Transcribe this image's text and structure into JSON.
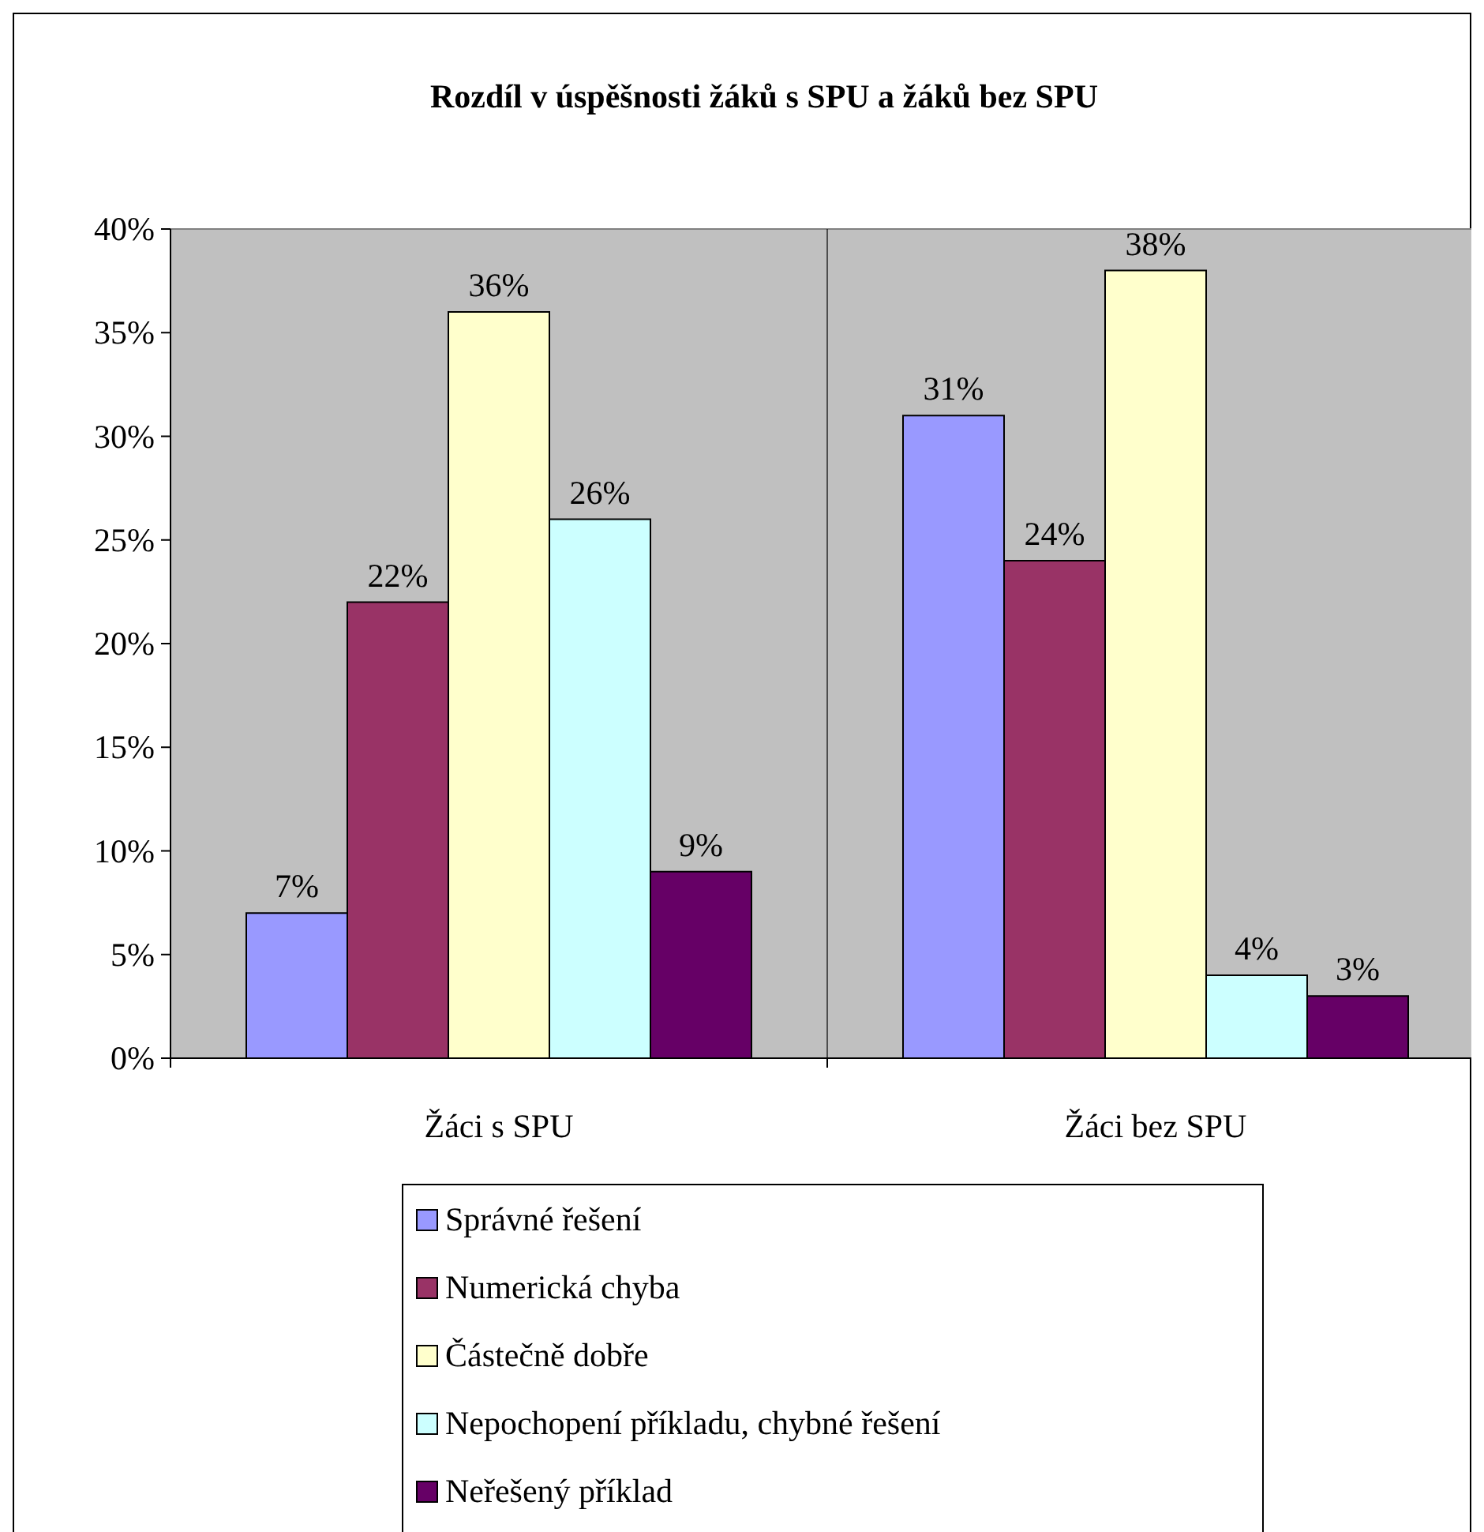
{
  "chart_data": {
    "type": "bar",
    "title": "Rozdíl v úspěšnosti žáků s SPU a žáků bez SPU",
    "categories": [
      "Žáci s SPU",
      "Žáci bez SPU"
    ],
    "series": [
      {
        "name": "Správné řešení",
        "color": "#9999ff",
        "values": [
          7,
          31
        ],
        "value_labels": [
          "7%",
          "31%"
        ]
      },
      {
        "name": "Numerická chyba",
        "color": "#993366",
        "values": [
          22,
          24
        ],
        "value_labels": [
          "22%",
          "24%"
        ]
      },
      {
        "name": "Částečně dobře",
        "color": "#ffffcc",
        "values": [
          36,
          38
        ],
        "value_labels": [
          "36%",
          "38%"
        ]
      },
      {
        "name": "Nepochopení příkladu, chybné řešení",
        "color": "#ccffff",
        "values": [
          26,
          4
        ],
        "value_labels": [
          "26%",
          "4%"
        ]
      },
      {
        "name": "Neřešený příklad",
        "color": "#660066",
        "values": [
          9,
          3
        ],
        "value_labels": [
          "9%",
          "3%"
        ]
      }
    ],
    "ylim": [
      0,
      40
    ],
    "yticks": [
      {
        "value": 0,
        "label": "0%"
      },
      {
        "value": 5,
        "label": "5%"
      },
      {
        "value": 10,
        "label": "10%"
      },
      {
        "value": 15,
        "label": "15%"
      },
      {
        "value": 20,
        "label": "20%"
      },
      {
        "value": 25,
        "label": "25%"
      },
      {
        "value": 30,
        "label": "30%"
      },
      {
        "value": 35,
        "label": "35%"
      },
      {
        "value": 40,
        "label": "40%"
      }
    ],
    "grid": "x",
    "legend": "bottom"
  }
}
